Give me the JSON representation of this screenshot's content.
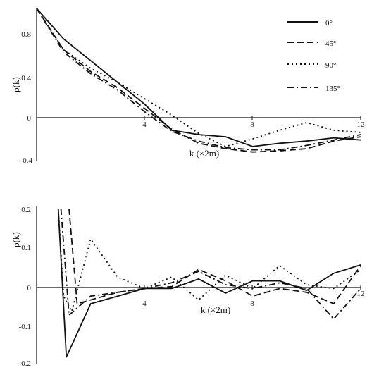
{
  "chart_data": [
    {
      "type": "line",
      "xlabel": "k (×2m)",
      "ylabel": "ρ(k)",
      "xlim": [
        0,
        12
      ],
      "ylim": [
        -0.4,
        1.0
      ],
      "xticks": [
        "4",
        "8",
        "12"
      ],
      "yticks": [
        "0.8",
        "0.4",
        "0",
        "-0.4"
      ],
      "legend_position": "top-right",
      "series": [
        {
          "name": "0°",
          "dash": "solid",
          "x": [
            0,
            1,
            2,
            3,
            4,
            5,
            6,
            7,
            8,
            9,
            10,
            11,
            12
          ],
          "y": [
            1.0,
            0.72,
            0.52,
            0.32,
            0.12,
            -0.12,
            -0.16,
            -0.18,
            -0.27,
            -0.24,
            -0.22,
            -0.19,
            -0.21
          ]
        },
        {
          "name": "45°",
          "dash": "dashed",
          "x": [
            0,
            1,
            2,
            3,
            4,
            5,
            6,
            7,
            8,
            9,
            10,
            11,
            12
          ],
          "y": [
            1.0,
            0.62,
            0.42,
            0.27,
            0.08,
            -0.11,
            -0.24,
            -0.29,
            -0.32,
            -0.31,
            -0.29,
            -0.22,
            -0.18
          ]
        },
        {
          "name": "90°",
          "dash": "dotted",
          "x": [
            0,
            1,
            2,
            3,
            4,
            5,
            6,
            7,
            8,
            9,
            10,
            11,
            12
          ],
          "y": [
            1.0,
            0.62,
            0.45,
            0.32,
            0.17,
            0.02,
            -0.15,
            -0.27,
            -0.2,
            -0.12,
            -0.05,
            -0.12,
            -0.14
          ]
        },
        {
          "name": "135°",
          "dash": "dashdot",
          "x": [
            0,
            1,
            2,
            3,
            4,
            5,
            6,
            7,
            8,
            9,
            10,
            11,
            12
          ],
          "y": [
            1.0,
            0.6,
            0.4,
            0.25,
            0.05,
            -0.13,
            -0.22,
            -0.28,
            -0.3,
            -0.3,
            -0.26,
            -0.21,
            -0.16
          ]
        }
      ]
    },
    {
      "type": "line",
      "xlabel": "k (×2m)",
      "ylabel": "ρ(k)",
      "xlim": [
        0,
        12
      ],
      "ylim": [
        -0.2,
        0.2
      ],
      "xticks": [
        "4",
        "8",
        "12"
      ],
      "yticks": [
        "0.2",
        "0.1",
        "0",
        "-0.1",
        "-0.2"
      ],
      "series": [
        {
          "name": "0°",
          "dash": "solid",
          "x": [
            0.8,
            1.1,
            2.0,
            3.0,
            4.0,
            5.0,
            6.0,
            7.0,
            8.0,
            9.0,
            10.0,
            11.0,
            12.0
          ],
          "y": [
            0.2,
            -0.19,
            -0.05,
            -0.03,
            -0.01,
            -0.01,
            0.015,
            -0.022,
            0.01,
            0.01,
            -0.015,
            0.03,
            0.052
          ]
        },
        {
          "name": "45°",
          "dash": "dashed",
          "x": [
            1.2,
            1.5,
            3.0,
            4.0,
            5.0,
            6.0,
            7.0,
            8.0,
            9.0,
            10.0,
            11.0,
            12.0
          ],
          "y": [
            0.2,
            -0.05,
            -0.02,
            -0.01,
            -0.005,
            0.04,
            0.01,
            -0.03,
            -0.01,
            -0.02,
            -0.05,
            0.05
          ]
        },
        {
          "name": "90°",
          "dash": "dotted",
          "x": [
            0.8,
            1.0,
            1.3,
            2.0,
            3.0,
            4.0,
            5.0,
            6.0,
            7.0,
            8.0,
            9.0,
            10.0,
            11.0,
            12.0
          ],
          "y": [
            0.2,
            -0.03,
            -0.07,
            0.12,
            0.02,
            -0.01,
            0.02,
            -0.04,
            0.025,
            -0.01,
            0.05,
            0.0,
            -0.01,
            0.04
          ]
        },
        {
          "name": "135°",
          "dash": "dashdot",
          "x": [
            0.9,
            1.2,
            2.0,
            3.0,
            4.0,
            5.0,
            6.0,
            7.0,
            8.0,
            9.0,
            10.0,
            11.0,
            12.0
          ],
          "y": [
            0.2,
            -0.08,
            -0.03,
            -0.02,
            -0.01,
            0.005,
            0.035,
            0.0,
            -0.01,
            0.005,
            -0.01,
            -0.09,
            -0.01
          ]
        }
      ]
    }
  ],
  "legend": {
    "items": [
      "0°",
      "45°",
      "90°",
      "135°"
    ]
  },
  "colors": {
    "ink": "#111111",
    "paper": "#ffffff"
  }
}
